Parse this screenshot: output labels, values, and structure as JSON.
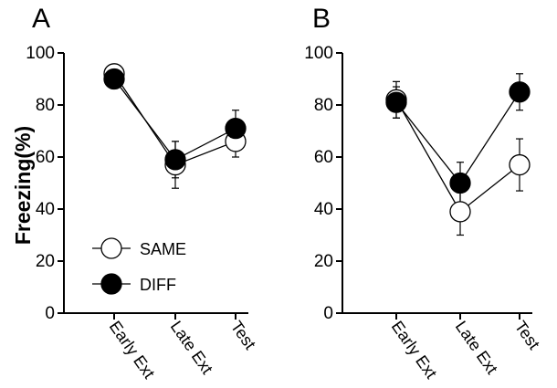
{
  "chart_data": {
    "type": "line",
    "ylabel": "Freezing(%)",
    "ylim": [
      0,
      100
    ],
    "yticks": [
      0,
      20,
      40,
      60,
      80,
      100
    ],
    "categories": [
      "Early Ext",
      "Late Ext",
      "Test"
    ],
    "legend": {
      "placement": "lower-left of panel A",
      "entries": [
        {
          "label": "SAME",
          "marker": "open-circle"
        },
        {
          "label": "DIFF",
          "marker": "filled-circle"
        }
      ]
    },
    "panels": [
      {
        "label": "A",
        "series": [
          {
            "name": "SAME",
            "marker": "open",
            "values": [
              92,
              57,
              66
            ],
            "errors": [
              2,
              9,
              6
            ]
          },
          {
            "name": "DIFF",
            "marker": "filled",
            "values": [
              90,
              59,
              71
            ],
            "errors": [
              2,
              7,
              7
            ]
          }
        ]
      },
      {
        "label": "B",
        "series": [
          {
            "name": "SAME",
            "marker": "open",
            "values": [
              82,
              39,
              57
            ],
            "errors": [
              7,
              9,
              10
            ]
          },
          {
            "name": "DIFF",
            "marker": "filled",
            "values": [
              81,
              50,
              85
            ],
            "errors": [
              6,
              8,
              7
            ]
          }
        ]
      }
    ],
    "grid": false,
    "colors": {
      "line": "#000000",
      "open_fill": "#ffffff",
      "filled_fill": "#000000"
    }
  }
}
